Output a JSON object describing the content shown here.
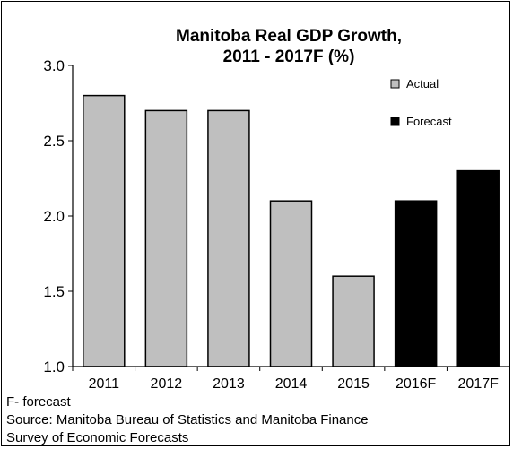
{
  "chart_data": {
    "type": "bar",
    "title_lines": [
      "Manitoba Real GDP Growth,",
      "2011 - 2017F (%)"
    ],
    "categories": [
      "2011",
      "2012",
      "2013",
      "2014",
      "2015",
      "2016F",
      "2017F"
    ],
    "values": [
      2.8,
      2.7,
      2.7,
      2.1,
      1.6,
      2.1,
      2.3
    ],
    "point_series": [
      "Actual",
      "Actual",
      "Actual",
      "Actual",
      "Actual",
      "Forecast",
      "Forecast"
    ],
    "series": [
      {
        "name": "Actual",
        "color": "#bfbfbf"
      },
      {
        "name": "Forecast",
        "color": "#000000"
      }
    ],
    "xlabel": "",
    "ylabel": "",
    "ylim": [
      1.0,
      3.0
    ],
    "yticks": [
      "1.0",
      "1.5",
      "2.0",
      "2.5",
      "3.0"
    ],
    "grid": false,
    "legend_position": "top-right"
  },
  "notes": {
    "footnote": "F- forecast",
    "source_line1": "Source: Manitoba Bureau of Statistics and Manitoba Finance",
    "source_line2": "Survey of Economic Forecasts"
  }
}
